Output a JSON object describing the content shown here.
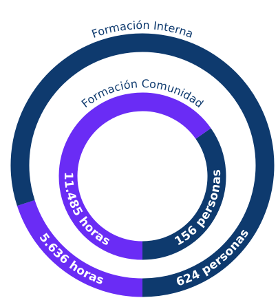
{
  "outer": {
    "title": "Formación Interna",
    "hours": "5.636 horas",
    "people": "624 personas"
  },
  "inner": {
    "title": "Formación Comunidad",
    "hours": "11.485 horas",
    "people": "156 personas"
  }
}
